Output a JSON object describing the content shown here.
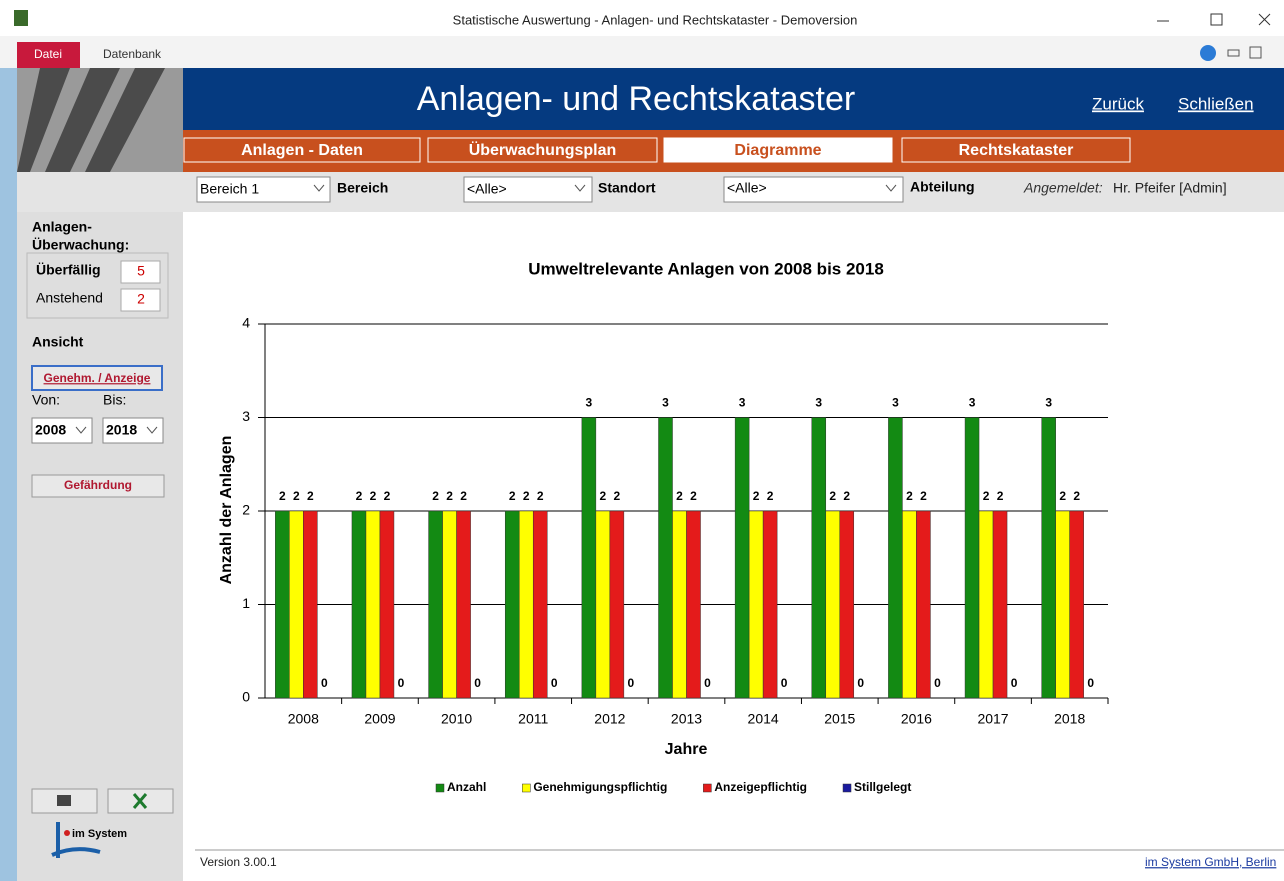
{
  "window": {
    "title": "Statistische Auswertung - Anlagen- und Rechtskataster - Demoversion"
  },
  "ribbon": {
    "tabs": [
      "Datei",
      "Datenbank"
    ]
  },
  "header": {
    "title": "Anlagen- und Rechtskataster",
    "links": [
      "Zurück",
      "Schließen"
    ]
  },
  "nav": {
    "buttons": [
      "Anlagen - Daten",
      "Überwachungsplan",
      "Diagramme",
      "Rechtskataster"
    ]
  },
  "filters": {
    "bereich_value": "Bereich 1",
    "bereich_label": "Bereich",
    "standort_value": "<Alle>",
    "standort_label": "Standort",
    "abteilung_value": "<Alle>",
    "abteilung_label": "Abteilung",
    "login_label": "Angemeldet:",
    "login_user": "Hr. Pfeifer [Admin]"
  },
  "sidebar": {
    "group_title_1": "Anlagen-",
    "group_title_2": "Überwachung:",
    "overdue_label": "Überfällig",
    "overdue_count": 5,
    "pending_label": "Anstehend",
    "pending_count": 2,
    "view_title": "Ansicht",
    "view_button": "Genehm. / Anzeige",
    "from_label": "Von:",
    "to_label": "Bis:",
    "from_year": "2008",
    "to_year": "2018",
    "hazard_button": "Gefährdung",
    "logo_text": "im System"
  },
  "footer": {
    "version": "Version 3.00.1",
    "company": "im System GmbH, Berlin"
  },
  "chart_data": {
    "type": "bar",
    "title": "Umweltrelevante Anlagen von 2008 bis 2018",
    "x_label": "Jahre",
    "y_label": "Anzahl der Anlagen",
    "categories": [
      "2008",
      "2009",
      "2010",
      "2011",
      "2012",
      "2013",
      "2014",
      "2015",
      "2016",
      "2017",
      "2018"
    ],
    "series": [
      {
        "name": "Anzahl",
        "color": "#138a13",
        "values": [
          2,
          2,
          2,
          2,
          3,
          3,
          3,
          3,
          3,
          3,
          3
        ]
      },
      {
        "name": "Genehmigungspflichtig",
        "color": "#ffff00",
        "values": [
          2,
          2,
          2,
          2,
          2,
          2,
          2,
          2,
          2,
          2,
          2
        ]
      },
      {
        "name": "Anzeigepflichtig",
        "color": "#e41b1b",
        "values": [
          2,
          2,
          2,
          2,
          2,
          2,
          2,
          2,
          2,
          2,
          2
        ]
      },
      {
        "name": "Stillgelegt",
        "color": "#1a1a9e",
        "values": [
          0,
          0,
          0,
          0,
          0,
          0,
          0,
          0,
          0,
          0,
          0
        ]
      }
    ],
    "ylim": [
      0,
      4
    ],
    "yticks": [
      0,
      1,
      2,
      3,
      4
    ],
    "grid": true,
    "legend": "bottom"
  }
}
